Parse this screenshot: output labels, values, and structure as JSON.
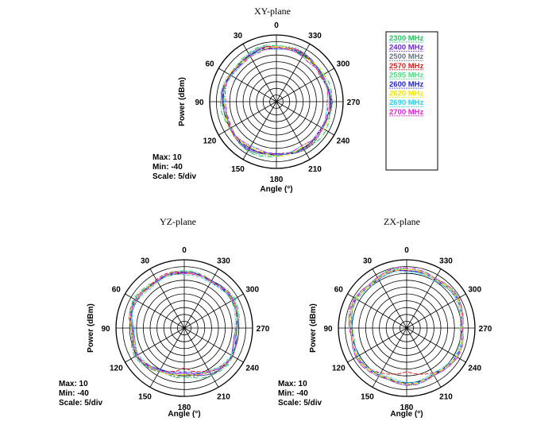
{
  "legend": {
    "entries": [
      {
        "label": "2300 MHz",
        "color": "#22c55e"
      },
      {
        "label": "2400 MHz",
        "color": "#6d28d9"
      },
      {
        "label": "2500 MHz",
        "color": "#6b7280"
      },
      {
        "label": "2570 MHz",
        "color": "#e11d1d"
      },
      {
        "label": "2595 MHz",
        "color": "#4ade80"
      },
      {
        "label": "2600 MHz",
        "color": "#1d1ddb"
      },
      {
        "label": "2620 MHz",
        "color": "#f2e600"
      },
      {
        "label": "2690 MHz",
        "color": "#22d3ee"
      },
      {
        "label": "2700 MHz",
        "color": "#e81ce8"
      }
    ]
  },
  "chart_data": [
    {
      "type": "polar",
      "title": "XY-plane",
      "xlabel": "Angle  (°)",
      "ylabel": "Power  (dBm)",
      "angle_ticks": [
        "0",
        "30",
        "60",
        "90",
        "120",
        "150",
        "180",
        "210",
        "240",
        "270",
        "300",
        "330"
      ],
      "rlim": [
        -40,
        10
      ],
      "info": [
        "Max: 10",
        "Min: -40",
        "Scale: 5/div"
      ],
      "series": [
        {
          "name": "2300 MHz",
          "values_db": [
            2,
            3,
            3,
            2,
            1,
            0,
            -1,
            0,
            1,
            2,
            2,
            1,
            0,
            1,
            2,
            3,
            3,
            2,
            1,
            0,
            0,
            1,
            2,
            3,
            3,
            2,
            1,
            1,
            2,
            2,
            1,
            0,
            -1,
            0,
            1,
            2
          ]
        },
        {
          "name": "2400 MHz",
          "values_db": [
            1,
            2,
            2,
            1,
            0,
            -1,
            0,
            1,
            2,
            1,
            0,
            -1,
            0,
            1,
            2,
            2,
            1,
            0,
            -1,
            0,
            1,
            2,
            2,
            1,
            0,
            0,
            1,
            2,
            1,
            0,
            -1,
            0,
            1,
            2,
            2,
            1
          ]
        },
        {
          "name": "2500 MHz",
          "values_db": [
            0,
            1,
            1,
            0,
            -1,
            -2,
            -1,
            0,
            1,
            1,
            0,
            -1,
            -1,
            0,
            1,
            2,
            1,
            0,
            -1,
            -1,
            0,
            1,
            1,
            0,
            -1,
            -1,
            0,
            1,
            1,
            0,
            -1,
            -1,
            0,
            1,
            1,
            0
          ]
        },
        {
          "name": "2570 MHz",
          "values_db": [
            1,
            2,
            1,
            0,
            0,
            -1,
            0,
            1,
            1,
            0,
            -1,
            -2,
            -1,
            0,
            1,
            1,
            0,
            -1,
            -1,
            0,
            1,
            2,
            1,
            0,
            -1,
            0,
            1,
            1,
            0,
            -1,
            -2,
            -1,
            0,
            1,
            2,
            1
          ]
        },
        {
          "name": "2595 MHz",
          "values_db": [
            2,
            3,
            2,
            1,
            0,
            0,
            1,
            2,
            2,
            1,
            0,
            -1,
            0,
            1,
            2,
            3,
            2,
            1,
            0,
            0,
            1,
            2,
            2,
            1,
            0,
            1,
            2,
            2,
            1,
            0,
            -1,
            0,
            1,
            2,
            3,
            2
          ]
        },
        {
          "name": "2600 MHz",
          "values_db": [
            0,
            1,
            1,
            0,
            -1,
            -1,
            0,
            1,
            1,
            0,
            -1,
            -1,
            0,
            1,
            1,
            1,
            0,
            -1,
            -1,
            0,
            1,
            1,
            0,
            -1,
            -1,
            0,
            1,
            1,
            0,
            -1,
            -1,
            0,
            1,
            1,
            1,
            0
          ]
        },
        {
          "name": "2620 MHz",
          "values_db": [
            1,
            1,
            0,
            -1,
            -1,
            0,
            1,
            1,
            0,
            -1,
            -1,
            0,
            1,
            1,
            0,
            -1,
            -1,
            0,
            1,
            1,
            0,
            -1,
            -1,
            0,
            1,
            1,
            0,
            -1,
            -1,
            0,
            1,
            1,
            0,
            -1,
            0,
            1
          ]
        },
        {
          "name": "2690 MHz",
          "values_db": [
            -1,
            0,
            0,
            -1,
            -2,
            -2,
            -1,
            0,
            0,
            -1,
            -2,
            -1,
            0,
            0,
            -1,
            -2,
            -2,
            -1,
            0,
            0,
            -1,
            -2,
            -1,
            0,
            0,
            -1,
            -2,
            -2,
            -1,
            0,
            0,
            -1,
            -2,
            -1,
            0,
            0
          ]
        },
        {
          "name": "2700 MHz",
          "values_db": [
            0,
            0,
            -1,
            -1,
            -2,
            -1,
            0,
            0,
            -1,
            -2,
            -2,
            -1,
            0,
            0,
            -1,
            -1,
            -2,
            -1,
            0,
            0,
            -1,
            -2,
            -1,
            0,
            0,
            -1,
            -1,
            -2,
            -1,
            0,
            0,
            -1,
            -2,
            -1,
            0,
            0
          ]
        }
      ]
    },
    {
      "type": "polar",
      "title": "YZ-plane",
      "xlabel": "Angle  (°)",
      "ylabel": "Power  (dBm)",
      "angle_ticks": [
        "0",
        "30",
        "60",
        "90",
        "120",
        "150",
        "180",
        "210",
        "240",
        "270",
        "300",
        "330"
      ],
      "rlim": [
        -40,
        10
      ],
      "info": [
        "Max: 10",
        "Min: -40",
        "Scale: 5/div"
      ],
      "series": [
        {
          "name": "2300 MHz",
          "values_db": [
            2,
            2,
            1,
            0,
            1,
            2,
            3,
            2,
            0,
            -2,
            -1,
            1,
            2,
            1,
            -1,
            -3,
            -4,
            -3,
            -4,
            -3,
            -1,
            0,
            1,
            2,
            1,
            -1,
            -2,
            -1,
            1,
            2,
            3,
            2,
            1,
            0,
            1,
            2
          ]
        },
        {
          "name": "2400 MHz",
          "values_db": [
            1,
            1,
            0,
            -1,
            0,
            1,
            2,
            1,
            -1,
            -3,
            -2,
            0,
            1,
            0,
            -2,
            -4,
            -5,
            -6,
            -7,
            -5,
            -3,
            -1,
            0,
            1,
            0,
            -2,
            -3,
            -2,
            0,
            1,
            2,
            1,
            0,
            -1,
            0,
            1
          ]
        },
        {
          "name": "2500 MHz",
          "values_db": [
            0,
            1,
            1,
            0,
            -1,
            0,
            1,
            1,
            0,
            -1,
            -1,
            0,
            1,
            0,
            -1,
            -3,
            -4,
            -4,
            -5,
            -4,
            -3,
            -1,
            0,
            1,
            0,
            -1,
            -2,
            -1,
            0,
            1,
            1,
            0,
            -1,
            -1,
            0,
            0
          ]
        },
        {
          "name": "2570 MHz",
          "values_db": [
            1,
            2,
            2,
            1,
            0,
            1,
            2,
            2,
            1,
            -1,
            -2,
            -1,
            0,
            -1,
            -3,
            -5,
            -6,
            -8,
            -11,
            -8,
            -6,
            -4,
            -2,
            0,
            1,
            0,
            -1,
            -2,
            -1,
            0,
            1,
            2,
            1,
            0,
            1,
            1
          ]
        },
        {
          "name": "2595 MHz",
          "values_db": [
            2,
            2,
            1,
            0,
            0,
            1,
            2,
            2,
            1,
            -1,
            -2,
            -1,
            0,
            -1,
            -2,
            -4,
            -5,
            -5,
            -6,
            -5,
            -4,
            -2,
            -1,
            1,
            1,
            0,
            -1,
            -1,
            0,
            1,
            2,
            2,
            1,
            0,
            1,
            2
          ]
        },
        {
          "name": "2600 MHz",
          "values_db": [
            1,
            1,
            1,
            0,
            -1,
            0,
            1,
            1,
            0,
            -2,
            -3,
            -2,
            0,
            -1,
            -3,
            -5,
            -6,
            -7,
            -8,
            -7,
            -5,
            -3,
            -1,
            0,
            1,
            0,
            -2,
            -2,
            -1,
            0,
            1,
            1,
            1,
            0,
            0,
            1
          ]
        },
        {
          "name": "2620 MHz",
          "values_db": [
            0,
            1,
            0,
            -1,
            -1,
            0,
            1,
            1,
            0,
            -1,
            -2,
            -1,
            0,
            -1,
            -2,
            -3,
            -4,
            -5,
            -6,
            -5,
            -4,
            -3,
            -2,
            0,
            0,
            -1,
            -2,
            -2,
            -1,
            0,
            1,
            1,
            0,
            -1,
            0,
            0
          ]
        },
        {
          "name": "2690 MHz",
          "values_db": [
            -1,
            0,
            0,
            -1,
            -2,
            -1,
            0,
            0,
            -1,
            -3,
            -3,
            -2,
            -1,
            -2,
            -3,
            -4,
            -5,
            -6,
            -7,
            -6,
            -5,
            -4,
            -2,
            -1,
            0,
            -1,
            -2,
            -3,
            -2,
            -1,
            0,
            0,
            -1,
            -2,
            -1,
            -1
          ]
        },
        {
          "name": "2700 MHz",
          "values_db": [
            0,
            1,
            1,
            0,
            -1,
            0,
            1,
            1,
            0,
            -2,
            -2,
            -1,
            0,
            -1,
            -2,
            -4,
            -5,
            -6,
            -7,
            -6,
            -4,
            -3,
            -1,
            0,
            1,
            0,
            -1,
            -2,
            -1,
            0,
            1,
            1,
            0,
            -1,
            0,
            0
          ]
        }
      ]
    },
    {
      "type": "polar",
      "title": "ZX-plane",
      "xlabel": "Angle  (°)",
      "ylabel": "Power  (dBm)",
      "angle_ticks": [
        "0",
        "30",
        "60",
        "90",
        "120",
        "150",
        "180",
        "210",
        "240",
        "270",
        "300",
        "330"
      ],
      "rlim": [
        -40,
        10
      ],
      "info": [
        "Max: 10",
        "Min: -40",
        "Scale: 5/div"
      ],
      "series": [
        {
          "name": "2300 MHz",
          "values_db": [
            3,
            4,
            4,
            3,
            2,
            3,
            4,
            4,
            3,
            2,
            1,
            2,
            3,
            3,
            2,
            1,
            0,
            1,
            2,
            2,
            1,
            0,
            1,
            2,
            3,
            3,
            2,
            1,
            2,
            3,
            4,
            4,
            3,
            2,
            3,
            3
          ]
        },
        {
          "name": "2400 MHz",
          "values_db": [
            2,
            3,
            3,
            2,
            1,
            2,
            3,
            3,
            2,
            1,
            0,
            1,
            2,
            2,
            1,
            0,
            -1,
            0,
            1,
            1,
            0,
            -1,
            0,
            1,
            2,
            2,
            1,
            0,
            1,
            2,
            3,
            3,
            2,
            1,
            2,
            2
          ]
        },
        {
          "name": "2500 MHz",
          "values_db": [
            3,
            4,
            3,
            2,
            2,
            3,
            4,
            3,
            2,
            1,
            1,
            2,
            3,
            2,
            1,
            0,
            0,
            1,
            2,
            1,
            0,
            0,
            1,
            2,
            3,
            2,
            1,
            1,
            2,
            3,
            4,
            3,
            2,
            2,
            3,
            3
          ]
        },
        {
          "name": "2570 MHz",
          "values_db": [
            2,
            3,
            3,
            2,
            1,
            2,
            3,
            3,
            2,
            1,
            0,
            1,
            2,
            1,
            0,
            -2,
            -4,
            -6,
            -8,
            -6,
            -4,
            -2,
            0,
            1,
            2,
            2,
            1,
            0,
            1,
            2,
            3,
            3,
            2,
            1,
            2,
            2
          ]
        },
        {
          "name": "2595 MHz",
          "values_db": [
            3,
            4,
            4,
            3,
            2,
            3,
            4,
            4,
            3,
            2,
            1,
            2,
            3,
            3,
            2,
            1,
            0,
            1,
            2,
            2,
            1,
            0,
            1,
            2,
            3,
            3,
            2,
            1,
            2,
            3,
            4,
            4,
            3,
            2,
            3,
            3
          ]
        },
        {
          "name": "2600 MHz",
          "values_db": [
            2,
            3,
            2,
            1,
            1,
            2,
            3,
            2,
            1,
            0,
            0,
            1,
            2,
            2,
            1,
            0,
            -1,
            0,
            1,
            1,
            0,
            -1,
            0,
            1,
            2,
            2,
            1,
            0,
            1,
            2,
            3,
            2,
            1,
            1,
            2,
            2
          ]
        },
        {
          "name": "2620 MHz",
          "values_db": [
            3,
            3,
            3,
            2,
            1,
            2,
            3,
            3,
            2,
            1,
            0,
            1,
            2,
            2,
            1,
            0,
            -1,
            0,
            1,
            1,
            0,
            -1,
            0,
            1,
            2,
            2,
            1,
            0,
            1,
            2,
            3,
            3,
            2,
            1,
            2,
            3
          ]
        },
        {
          "name": "2690 MHz",
          "values_db": [
            1,
            2,
            2,
            1,
            0,
            1,
            2,
            2,
            1,
            0,
            -1,
            0,
            1,
            1,
            0,
            -1,
            -2,
            -1,
            0,
            0,
            -1,
            -2,
            -1,
            0,
            1,
            1,
            0,
            -1,
            0,
            1,
            2,
            2,
            1,
            0,
            1,
            1
          ]
        },
        {
          "name": "2700 MHz",
          "values_db": [
            4,
            5,
            4,
            3,
            2,
            3,
            4,
            4,
            3,
            2,
            1,
            2,
            3,
            3,
            2,
            1,
            0,
            1,
            2,
            2,
            1,
            0,
            1,
            2,
            3,
            3,
            2,
            1,
            2,
            3,
            4,
            4,
            3,
            2,
            3,
            4
          ]
        }
      ]
    }
  ]
}
